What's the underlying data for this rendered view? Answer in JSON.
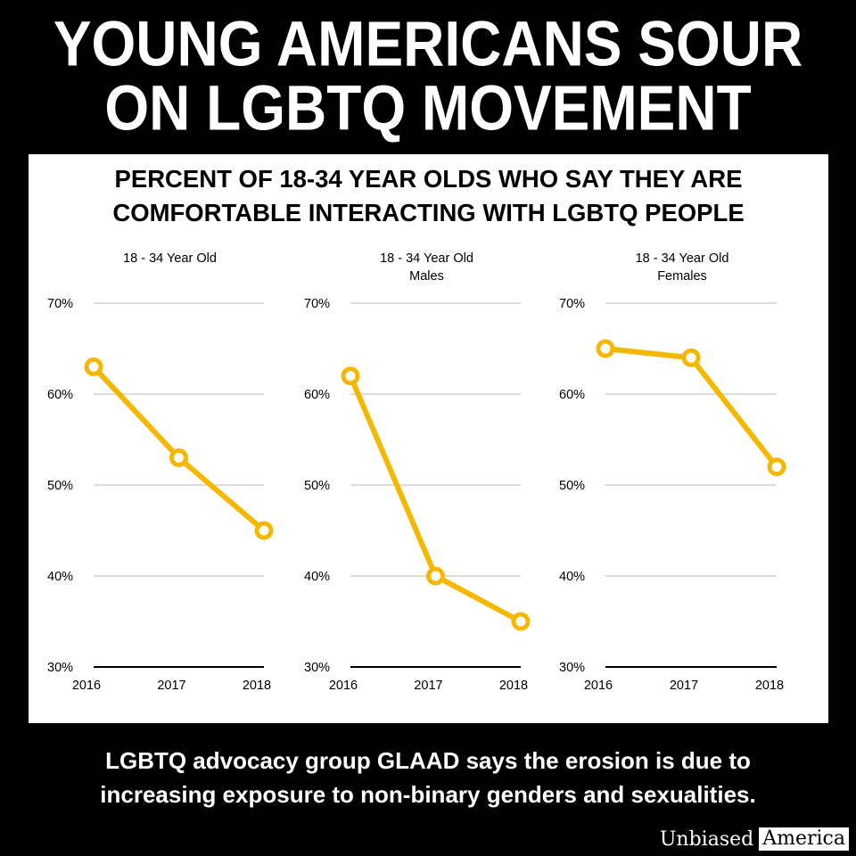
{
  "headline": {
    "line1": "YOUNG AMERICANS SOUR",
    "line2": "ON LGBTQ MOVEMENT"
  },
  "subtitle": {
    "line1": "PERCENT OF 18-34 YEAR OLDS WHO SAY THEY ARE",
    "line2": "COMFORTABLE INTERACTING WITH LGBTQ PEOPLE"
  },
  "caption": {
    "line1": "LGBTQ advocacy group GLAAD says the erosion is due to",
    "line2": "increasing exposure to non-binary genders and sexualities."
  },
  "brand": {
    "word1": "Unbiased",
    "word2": "America"
  },
  "colors": {
    "line": "#f5b800",
    "grid": "#c8c8c8",
    "axis": "#000000"
  },
  "chart_data": [
    {
      "type": "line",
      "title": [
        "18 - 34 Year Old"
      ],
      "x": [
        "2016",
        "2017",
        "2018"
      ],
      "values": [
        63,
        53,
        45
      ],
      "ylim": [
        30,
        70
      ],
      "yticks": [
        "30%",
        "40%",
        "50%",
        "60%",
        "70%"
      ],
      "grid": true
    },
    {
      "type": "line",
      "title": [
        "18 - 34 Year Old",
        "Males"
      ],
      "x": [
        "2016",
        "2017",
        "2018"
      ],
      "values": [
        62,
        40,
        35
      ],
      "ylim": [
        30,
        70
      ],
      "yticks": [
        "30%",
        "40%",
        "50%",
        "60%",
        "70%"
      ],
      "grid": true
    },
    {
      "type": "line",
      "title": [
        "18 - 34 Year Old",
        "Females"
      ],
      "x": [
        "2016",
        "2017",
        "2018"
      ],
      "values": [
        65,
        64,
        52
      ],
      "ylim": [
        30,
        70
      ],
      "yticks": [
        "30%",
        "40%",
        "50%",
        "60%",
        "70%"
      ],
      "grid": true
    }
  ]
}
